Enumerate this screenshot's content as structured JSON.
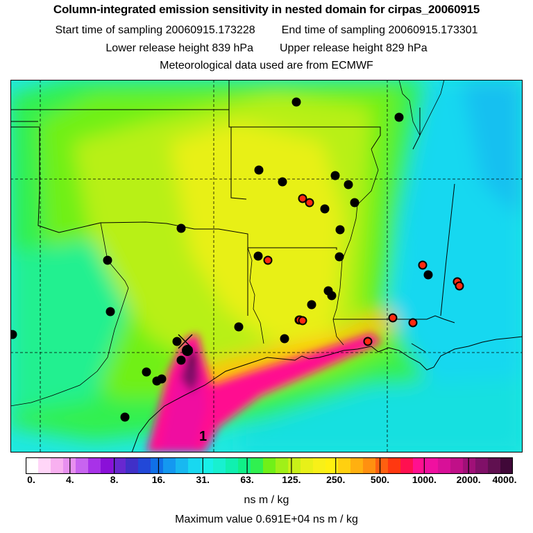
{
  "header": {
    "title": "Column-integrated emission sensitivity in nested domain for cirpas_20060915",
    "start_label": "Start time of sampling 20060915.173228",
    "end_label": "End time of sampling 20060915.173301",
    "lower_label": "Lower release height  839 hPa",
    "upper_label": "Upper release height  829 hPa",
    "met_label": "Meteorological data used are from ECMWF"
  },
  "map": {
    "release_marker_label": "1",
    "colors": {
      "black_site": "#000000",
      "red_site": "#ff2a10",
      "boundary": "#000000"
    }
  },
  "colorbar": {
    "tick_labels": [
      "0.",
      "4.",
      "8.",
      "16.",
      "31.",
      "63.",
      "125.",
      "250.",
      "500.",
      "1000.",
      "2000.",
      "4000."
    ],
    "colors": [
      "#ffffff",
      "#ffd6f8",
      "#f8b0f0",
      "#e890f0",
      "#c864f0",
      "#a832e8",
      "#8a10d8",
      "#6828d0",
      "#4030c8",
      "#2248d8",
      "#1070e8",
      "#1498f0",
      "#18b8f0",
      "#18d8f0",
      "#18f0e8",
      "#18f0d0",
      "#10f0b0",
      "#10f088",
      "#30f050",
      "#70f018",
      "#a0f018",
      "#c8f018",
      "#e8f018",
      "#f8f018",
      "#fff010",
      "#ffd010",
      "#ffb010",
      "#ff9010",
      "#ff6010",
      "#ff3810",
      "#ff1050",
      "#ff1090",
      "#f010a0",
      "#d81098",
      "#c01088",
      "#a01078",
      "#801068",
      "#601050",
      "#400838"
    ],
    "units": "ns m / kg"
  },
  "footer": {
    "max_value": "Maximum value  0.691E+04 ns m / kg"
  }
}
